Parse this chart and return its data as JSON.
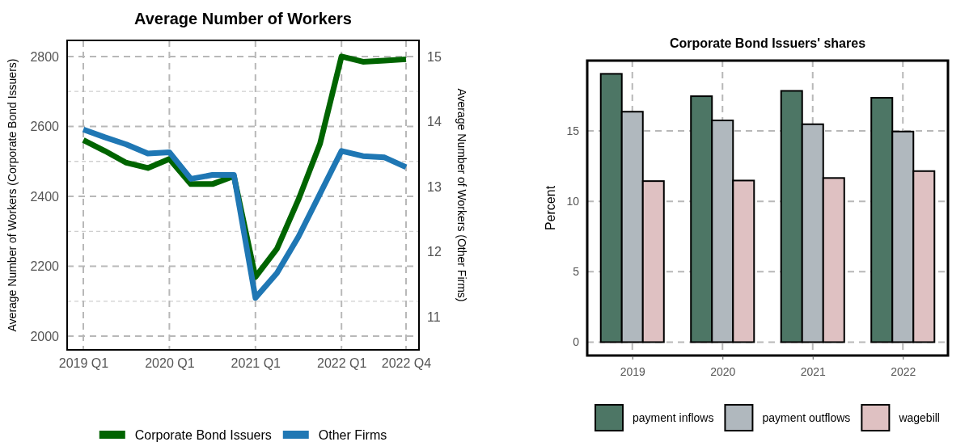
{
  "chart_data": [
    {
      "type": "line",
      "title": "Average Number of Workers",
      "ylabel": "Average Number of Workers (Corporate Bond Issuers)",
      "y2label": "Average Number of Workers (Other Firms)",
      "categories": [
        "2019 Q1",
        null,
        null,
        null,
        "2020 Q1",
        null,
        null,
        null,
        "2021 Q1",
        null,
        null,
        null,
        "2022 Q1",
        null,
        null,
        "2022 Q4"
      ],
      "series": [
        {
          "name": "Corporate Bond Issuers",
          "color": "#006400",
          "values": [
            2561,
            2530,
            2496,
            2481,
            2507,
            2435,
            2435,
            2458,
            2169,
            2250,
            2391,
            2550,
            2800,
            2785,
            2788,
            2792
          ]
        },
        {
          "name": "Other Firms",
          "color": "#1f77b4",
          "axis": "y2",
          "values": [
            13.88,
            13.76,
            13.65,
            13.51,
            13.53,
            13.12,
            13.18,
            13.18,
            11.29,
            11.67,
            12.23,
            12.89,
            13.55,
            13.47,
            13.45,
            13.3
          ]
        }
      ],
      "ylim": [
        1961,
        2846
      ],
      "yticks": [
        2000,
        {
          "value": 2100,
          "label": null
        },
        2200,
        {
          "value": 2300,
          "label": null
        },
        2400,
        {
          "value": 2500,
          "label": null
        },
        2600,
        {
          "value": 2700,
          "label": null
        },
        2800
      ],
      "y2lim": [
        10.49,
        15.25
      ],
      "y2ticks": [
        11,
        12,
        13,
        14,
        15
      ],
      "grid": true,
      "legend": "bottom"
    },
    {
      "type": "bar",
      "title": "Corporate Bond Issuers' shares",
      "ylabel": "Percent",
      "categories": [
        "2019",
        "2020",
        "2021",
        "2022"
      ],
      "series": [
        {
          "name": "payment inflows",
          "color": "#4d7665",
          "values": [
            19.06,
            17.47,
            17.85,
            17.36
          ]
        },
        {
          "name": "payment outflows",
          "color": "#b0b8be",
          "values": [
            16.37,
            15.75,
            15.48,
            14.96
          ]
        },
        {
          "name": "wagebill",
          "color": "#dfc1c2",
          "values": [
            11.44,
            11.48,
            11.66,
            12.15
          ]
        }
      ],
      "ylim": [
        -0.95,
        20
      ],
      "yticks": [
        0,
        5,
        10,
        15
      ],
      "grid": true,
      "legend": "bottom"
    }
  ]
}
